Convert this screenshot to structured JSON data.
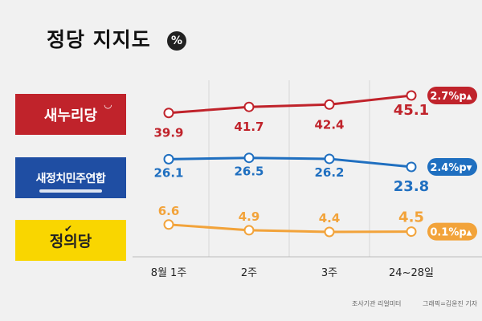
{
  "title": "정당 지지도",
  "unit_badge": "%",
  "logos": {
    "saenuri": "새누리당",
    "npad": "새정치민주연합",
    "justice": "정의당"
  },
  "chart_data": {
    "type": "line",
    "categories": [
      "8월 1주",
      "2주",
      "3주",
      "24~28일"
    ],
    "series": [
      {
        "name": "새누리당",
        "color": "#c0232b",
        "values": [
          39.9,
          41.7,
          42.4,
          45.1
        ],
        "change": "2.7%p",
        "direction": "up"
      },
      {
        "name": "새정치민주연합",
        "color": "#1f6fc0",
        "values": [
          26.1,
          26.5,
          26.2,
          23.8
        ],
        "change": "2.4%p",
        "direction": "down"
      },
      {
        "name": "정의당",
        "color": "#f2a33a",
        "values": [
          6.6,
          4.9,
          4.4,
          4.5
        ],
        "change": "0.1%p",
        "direction": "up"
      }
    ],
    "title": "정당 지지도",
    "xlabel": "",
    "ylabel": ""
  },
  "footer": {
    "source": "조사기관 리얼미터",
    "credit": "그래픽=김윤진 기자"
  }
}
